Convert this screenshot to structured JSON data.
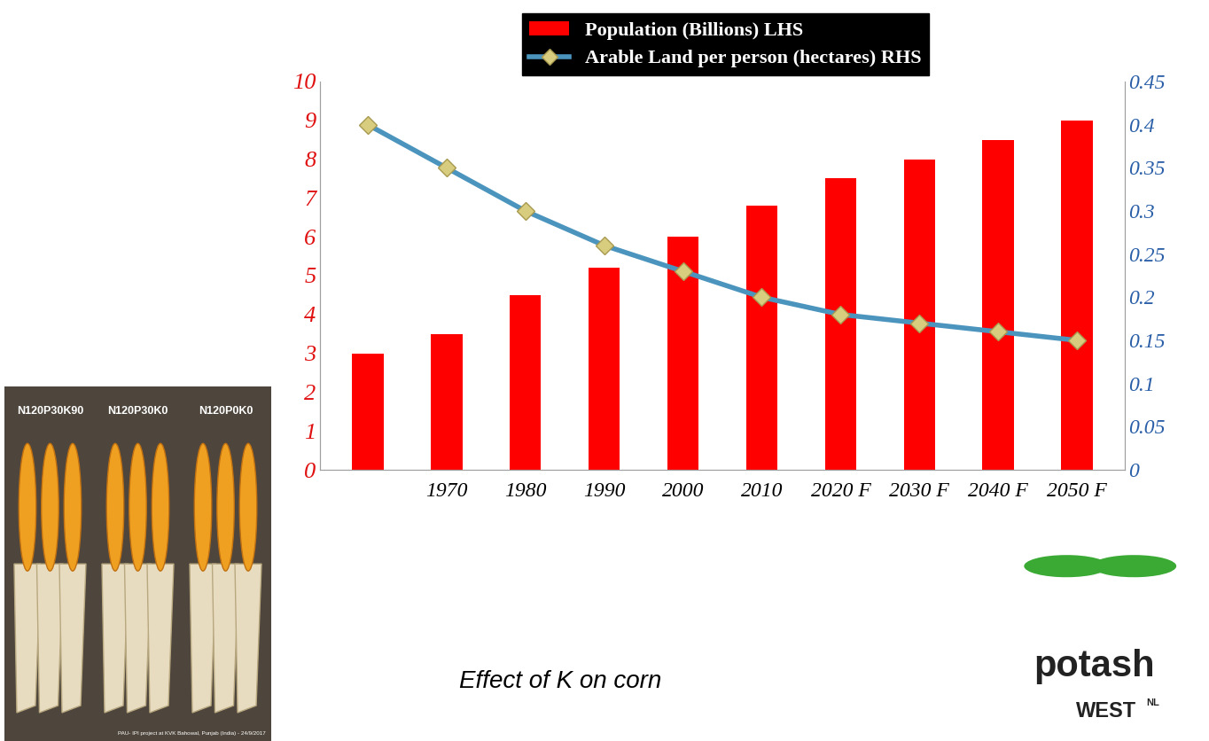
{
  "chart_data": {
    "type": "bar",
    "categories": [
      null,
      "1970",
      "1980",
      "1990",
      "2000",
      "2010",
      "2020 F",
      "2030 F",
      "2040 F",
      "2050 F"
    ],
    "series": [
      {
        "name": "Population (Billions) LHS",
        "type": "bar",
        "color": "#ff0000",
        "axis": "y",
        "values": [
          3,
          3.5,
          4.5,
          5.2,
          6,
          6.8,
          7.5,
          8,
          8.5,
          9
        ]
      },
      {
        "name": "Arable Land per person (hectares) RHS",
        "type": "line",
        "color": "#4a94bd",
        "axis": "y2",
        "marker": "diamond",
        "line_style": "solid",
        "values": [
          0.4,
          0.35,
          0.3,
          0.26,
          0.23,
          0.2,
          0.18,
          0.17,
          0.16,
          0.15
        ]
      }
    ],
    "ylim": [
      0,
      10
    ],
    "yticks": [
      0,
      1,
      2,
      3,
      4,
      5,
      6,
      7,
      8,
      9,
      10
    ],
    "y2lim": [
      0,
      0.45
    ],
    "y2ticks": [
      0,
      0.05,
      0.1,
      0.15,
      0.2,
      0.25,
      0.3,
      0.35,
      0.4,
      0.45
    ],
    "legend": "upper center",
    "grid": false
  },
  "photo": {
    "labels": [
      "N120P30K90",
      "N120P30K0",
      "N120P0K0"
    ],
    "credit": "PAU- IPI project at KVK Bahowal, Punjab (India) - 24/9/2017"
  },
  "caption": "Effect of K on corn",
  "logo": {
    "name": "potash",
    "sub": "WEST",
    "sup": "NL"
  }
}
